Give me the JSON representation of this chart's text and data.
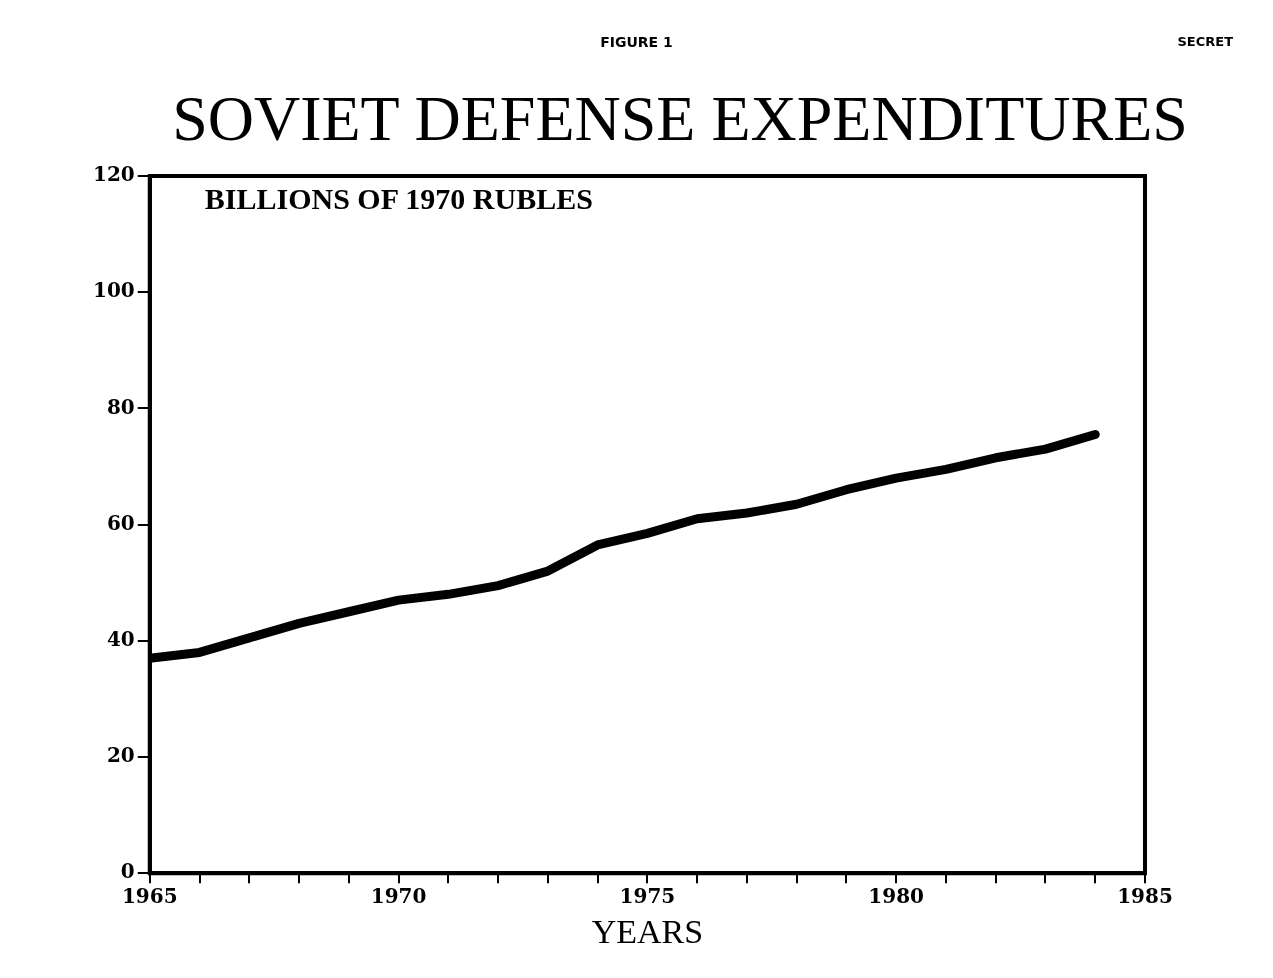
{
  "chart_data": {
    "type": "line",
    "title": "SOVIET DEFENSE EXPENDITURES",
    "subtitle": "FIGURE 1",
    "annotations": [
      "SECRET"
    ],
    "ylabel": "BILLIONS OF 1970 RUBLES",
    "xlabel": "YEARS",
    "x": [
      1965,
      1966,
      1967,
      1968,
      1969,
      1970,
      1971,
      1972,
      1973,
      1974,
      1975,
      1976,
      1977,
      1978,
      1979,
      1980,
      1981,
      1982,
      1983,
      1984
    ],
    "series": [
      {
        "color": "#000000",
        "values": [
          37,
          38,
          40.5,
          43,
          45,
          47,
          48,
          49.5,
          52,
          56.5,
          58.5,
          61,
          62,
          63.5,
          66,
          68,
          69.5,
          71.5,
          73,
          75.5
        ]
      }
    ],
    "xlim": [
      1965,
      1985
    ],
    "xticks": [
      1965,
      {
        "value": 1966,
        "label": null
      },
      {
        "value": 1967,
        "label": null
      },
      {
        "value": 1968,
        "label": null
      },
      {
        "value": 1969,
        "label": null
      },
      1970,
      {
        "value": 1971,
        "label": null
      },
      {
        "value": 1972,
        "label": null
      },
      {
        "value": 1973,
        "label": null
      },
      {
        "value": 1974,
        "label": null
      },
      1975,
      {
        "value": 1976,
        "label": null
      },
      {
        "value": 1977,
        "label": null
      },
      {
        "value": 1978,
        "label": null
      },
      {
        "value": 1979,
        "label": null
      },
      1980,
      {
        "value": 1981,
        "label": null
      },
      {
        "value": 1982,
        "label": null
      },
      {
        "value": 1983,
        "label": null
      },
      {
        "value": 1984,
        "label": null
      },
      1985
    ],
    "ylim": [
      0,
      120
    ],
    "yticks": [
      0,
      20,
      40,
      60,
      80,
      100,
      120
    ],
    "grid": false,
    "legend": false,
    "marker": "none",
    "line_style": "solid"
  }
}
